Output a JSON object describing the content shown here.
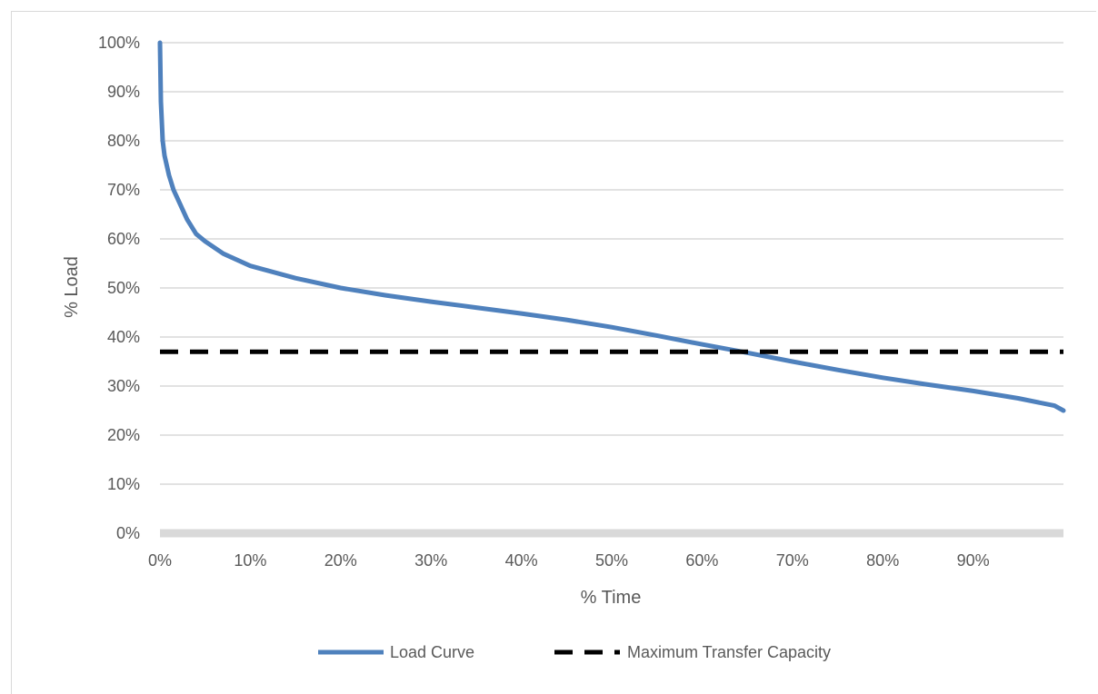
{
  "chart_data": {
    "type": "line",
    "xlabel": "% Time",
    "ylabel": "% Load",
    "xlim": [
      0,
      100
    ],
    "ylim": [
      0,
      100
    ],
    "x_ticks": [
      0,
      10,
      20,
      30,
      40,
      50,
      60,
      70,
      80,
      90
    ],
    "x_tick_labels": [
      "0%",
      "10%",
      "20%",
      "30%",
      "40%",
      "50%",
      "60%",
      "70%",
      "80%",
      "90%"
    ],
    "y_ticks": [
      0,
      10,
      20,
      30,
      40,
      50,
      60,
      70,
      80,
      90,
      100
    ],
    "y_tick_labels": [
      "0%",
      "10%",
      "20%",
      "30%",
      "40%",
      "50%",
      "60%",
      "70%",
      "80%",
      "90%",
      "100%"
    ],
    "grid": "horizontal",
    "legend_position": "bottom",
    "series": [
      {
        "name": "Load Curve",
        "color": "#4f81bd",
        "style": "solid",
        "x": [
          0,
          0.1,
          0.3,
          0.5,
          1,
          1.5,
          2,
          3,
          4,
          5,
          7,
          10,
          15,
          20,
          25,
          30,
          35,
          40,
          45,
          50,
          55,
          60,
          65,
          70,
          75,
          80,
          85,
          90,
          95,
          99,
          100
        ],
        "y": [
          100,
          88,
          80,
          77,
          73,
          70,
          68,
          64,
          61,
          59.5,
          57,
          54.5,
          52,
          50,
          48.5,
          47.2,
          46,
          44.8,
          43.5,
          42,
          40.3,
          38.5,
          36.8,
          35,
          33.3,
          31.7,
          30.3,
          29,
          27.5,
          26,
          25
        ]
      },
      {
        "name": "Maximum Transfer Capacity",
        "color": "#000000",
        "style": "dashed",
        "x": [
          0,
          100
        ],
        "y": [
          37,
          37
        ]
      }
    ]
  }
}
